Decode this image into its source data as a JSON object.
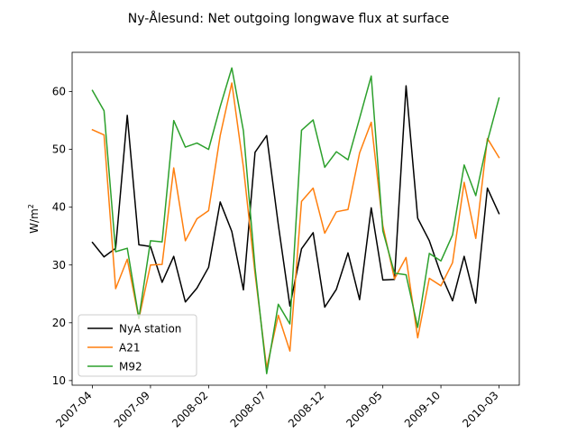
{
  "chart_data": {
    "type": "line",
    "title": "Ny-Ålesund: Net outgoing longwave flux at surface",
    "xlabel": "",
    "ylabel": "W/m²",
    "ylabel_base": "W/m",
    "ylabel_sup": "2",
    "x": [
      "2007-04",
      "2007-05",
      "2007-06",
      "2007-07",
      "2007-08",
      "2007-09",
      "2007-10",
      "2007-11",
      "2007-12",
      "2008-01",
      "2008-02",
      "2008-03",
      "2008-04",
      "2008-05",
      "2008-06",
      "2008-07",
      "2008-08",
      "2008-09",
      "2008-10",
      "2008-11",
      "2008-12",
      "2009-01",
      "2009-02",
      "2009-03",
      "2009-04",
      "2009-05",
      "2009-06",
      "2009-07",
      "2009-08",
      "2009-09",
      "2009-10",
      "2009-11",
      "2009-12",
      "2010-01",
      "2010-02",
      "2010-03"
    ],
    "x_tick_labels": [
      "2007-04",
      "2007-09",
      "2008-02",
      "2008-07",
      "2008-12",
      "2009-05",
      "2009-10",
      "2010-03"
    ],
    "ylim": [
      9.2,
      66.8
    ],
    "y_ticks": [
      10,
      20,
      30,
      40,
      50,
      60
    ],
    "grid": false,
    "legend_position": "lower-left",
    "series": [
      {
        "name": "NyA station",
        "color": "#000000",
        "values": [
          33.9,
          31.4,
          32.9,
          55.9,
          33.5,
          33.2,
          27.0,
          31.5,
          23.6,
          26.0,
          29.6,
          40.9,
          35.8,
          25.7,
          49.5,
          52.4,
          37.0,
          22.9,
          32.8,
          35.6,
          22.7,
          25.8,
          32.1,
          24.0,
          39.9,
          27.4,
          27.5,
          61.0,
          38.1,
          34.2,
          28.4,
          23.8,
          31.5,
          23.4,
          43.3,
          38.9
        ]
      },
      {
        "name": "A21",
        "color": "#ff7f0e",
        "values": [
          53.4,
          52.5,
          25.9,
          31.0,
          20.7,
          30.0,
          30.1,
          46.8,
          34.2,
          38.0,
          39.4,
          52.4,
          61.5,
          46.9,
          28.5,
          12.2,
          21.3,
          15.1,
          41.0,
          43.3,
          35.5,
          39.2,
          39.6,
          49.4,
          54.7,
          36.8,
          27.6,
          31.3,
          17.4,
          27.7,
          26.4,
          30.4,
          44.3,
          34.6,
          51.9,
          48.6
        ]
      },
      {
        "name": "M92",
        "color": "#2ca02c",
        "values": [
          60.2,
          56.7,
          32.3,
          32.9,
          20.8,
          34.2,
          34.0,
          55.0,
          50.4,
          51.1,
          50.0,
          57.4,
          64.1,
          53.2,
          29.5,
          11.2,
          23.2,
          19.8,
          53.3,
          55.1,
          46.9,
          49.6,
          48.2,
          55.4,
          62.7,
          35.9,
          28.6,
          28.3,
          19.2,
          32.0,
          30.7,
          35.2,
          47.3,
          42.0,
          51.4,
          58.9
        ]
      }
    ]
  }
}
